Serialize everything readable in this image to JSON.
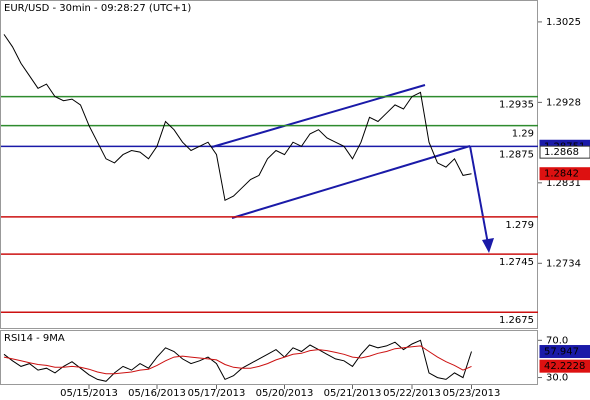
{
  "chart_data": [
    {
      "type": "line",
      "title": "EUR/USD - 30min - 09:28:27 (UTC+1)",
      "categories": [
        null,
        null,
        null,
        null,
        null,
        null,
        null,
        null,
        null,
        null,
        "05/15/2013",
        null,
        null,
        null,
        null,
        null,
        null,
        null,
        "05/16/2013",
        null,
        null,
        null,
        null,
        null,
        null,
        "05/17/2013",
        null,
        null,
        null,
        null,
        null,
        null,
        null,
        "05/20/2013",
        null,
        null,
        null,
        null,
        null,
        null,
        null,
        "05/21/2013",
        null,
        null,
        null,
        null,
        null,
        null,
        "05/22/2013",
        null,
        null,
        null,
        null,
        null,
        null,
        "05/23/2013"
      ],
      "series": [
        {
          "color": "#000000",
          "values": [
            1.301,
            1.2995,
            1.2975,
            1.296,
            1.2945,
            1.295,
            1.2935,
            1.293,
            1.2932,
            1.2925,
            1.29,
            1.288,
            1.286,
            1.2855,
            1.2865,
            1.287,
            1.2868,
            1.286,
            1.2875,
            1.2905,
            1.2895,
            1.288,
            1.287,
            1.2875,
            1.288,
            1.2865,
            1.281,
            1.2815,
            1.2825,
            1.2835,
            1.284,
            1.286,
            1.287,
            1.2865,
            1.288,
            1.2875,
            1.289,
            1.2895,
            1.2885,
            1.288,
            1.2875,
            1.286,
            1.288,
            1.291,
            1.2905,
            1.2915,
            1.2925,
            1.292,
            1.2935,
            1.294,
            1.288,
            1.2855,
            1.285,
            1.286,
            1.284,
            1.2842
          ]
        }
      ],
      "levels": [
        {
          "value": 1.2935,
          "color": "#2e8b2e"
        },
        {
          "value": 1.29,
          "color": "#2e8b2e"
        },
        {
          "value": 1.2875,
          "color": "#1a1aa8"
        },
        {
          "value": 1.279,
          "color": "#cc1111"
        },
        {
          "value": 1.2745,
          "color": "#cc1111"
        },
        {
          "value": 1.2675,
          "color": "#cc1111"
        }
      ],
      "markers": [
        {
          "value": 1.28751,
          "color": "#1a1aa8"
        },
        {
          "value": 1.2868,
          "color": "#ffffff"
        },
        {
          "value": 1.2842,
          "color": "#dd1111"
        }
      ],
      "ylim": [
        1.2656,
        1.3049
      ],
      "yticks": [
        1.3025,
        1.2928,
        1.2831,
        1.2734
      ]
    },
    {
      "type": "line",
      "title": "RSI14 - 9MA",
      "series": [
        {
          "color": "#000000",
          "values": [
            55,
            48,
            42,
            45,
            38,
            40,
            35,
            42,
            47,
            40,
            33,
            28,
            26,
            35,
            42,
            38,
            45,
            40,
            52,
            62,
            58,
            50,
            45,
            48,
            52,
            45,
            28,
            32,
            40,
            45,
            50,
            55,
            60,
            52,
            62,
            58,
            65,
            60,
            55,
            50,
            48,
            42,
            55,
            65,
            62,
            64,
            68,
            60,
            66,
            70,
            35,
            30,
            28,
            35,
            30,
            58
          ]
        },
        {
          "color": "#cc1111",
          "values": [
            52,
            50,
            48,
            46,
            44,
            43,
            41,
            41,
            42,
            41,
            39,
            36,
            34,
            34,
            35,
            36,
            38,
            39,
            43,
            48,
            52,
            53,
            52,
            51,
            50,
            49,
            44,
            41,
            40,
            40,
            42,
            45,
            49,
            52,
            55,
            56,
            59,
            60,
            59,
            57,
            55,
            52,
            51,
            53,
            56,
            58,
            61,
            62,
            63,
            64,
            58,
            52,
            47,
            43,
            38,
            42
          ]
        }
      ],
      "markers": [
        {
          "value": 57.947,
          "color": "#1a1aa8"
        },
        {
          "value": 42.2228,
          "color": "#dd1111"
        }
      ],
      "ylim": [
        22,
        80
      ],
      "yticks": [
        {
          "value": 70,
          "label": "70.0"
        },
        {
          "value": 30,
          "label": "30.0"
        }
      ]
    }
  ]
}
